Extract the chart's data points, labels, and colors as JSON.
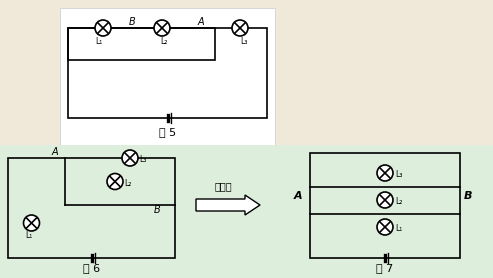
{
  "bg_color": "#f0e8d8",
  "top_bg": "#ffffff",
  "bottom_bg": "#ddeedd",
  "fig5_title": "图 5",
  "fig6_title": "图 6",
  "fig7_title": "图 7",
  "arrow_text": "处理后",
  "lw": 1.2,
  "bulb_r": 8,
  "labels": {
    "B_top": "B",
    "A_top": "A",
    "L1_top": "L₁",
    "L2_top": "L₂",
    "L3_top": "L₃",
    "A_fig6": "A",
    "B_fig6": "B",
    "L1_fig6": "L₁",
    "L2_fig6": "L₂",
    "L3_fig6": "L₃",
    "A_fig7": "A",
    "B_fig7": "B",
    "L1_fig7": "L₁",
    "L2_fig7": "L₂",
    "L3_fig7": "L₃"
  }
}
